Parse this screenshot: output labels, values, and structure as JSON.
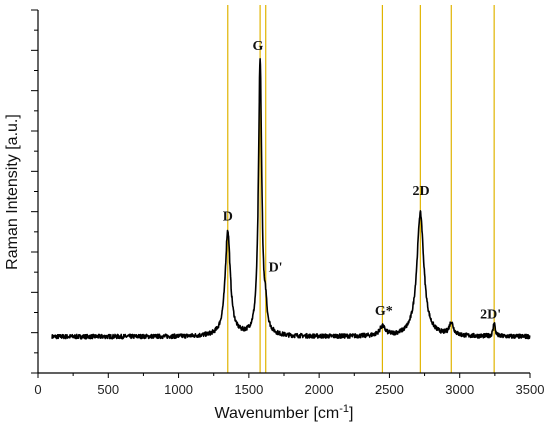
{
  "chart_data": {
    "type": "line",
    "title": "",
    "xlabel": "Wavenumber [cm",
    "xlabel_sup": "-1",
    "xlabel_end": "]",
    "ylabel": "Raman Intensity [a.u.]",
    "xlim": [
      0,
      3500
    ],
    "ylim": [
      0,
      1
    ],
    "xticks": [
      0,
      500,
      1000,
      1500,
      2000,
      2500,
      3000,
      3500
    ],
    "grid": false,
    "line_color": "#000000",
    "reference_line_color": "#e0b400",
    "reference_lines": [
      1350,
      1580,
      1620,
      2450,
      2720,
      2940,
      3245
    ],
    "peaks": [
      {
        "label": "D",
        "x": 1350,
        "height": 0.29
      },
      {
        "label": "G",
        "x": 1580,
        "height": 0.76
      },
      {
        "label": "D'",
        "x": 1620,
        "height": 0.05
      },
      {
        "label": "G*",
        "x": 2450,
        "height": 0.025
      },
      {
        "label": "2D",
        "x": 2720,
        "height": 0.34
      },
      {
        "label": "",
        "x": 2940,
        "height": 0.035
      },
      {
        "label": "2D'",
        "x": 3245,
        "height": 0.04
      }
    ],
    "baseline": 0.1,
    "x_start": 100,
    "x_end": 3500,
    "annotations": [
      {
        "text": "D",
        "x": 1350,
        "y": 0.42
      },
      {
        "text": "G",
        "x": 1565,
        "y": 0.89
      },
      {
        "text": "D'",
        "x": 1690,
        "y": 0.28
      },
      {
        "text": "G*",
        "x": 2460,
        "y": 0.16
      },
      {
        "text": "2D",
        "x": 2725,
        "y": 0.49
      },
      {
        "text": "2D'",
        "x": 3220,
        "y": 0.15
      }
    ]
  }
}
